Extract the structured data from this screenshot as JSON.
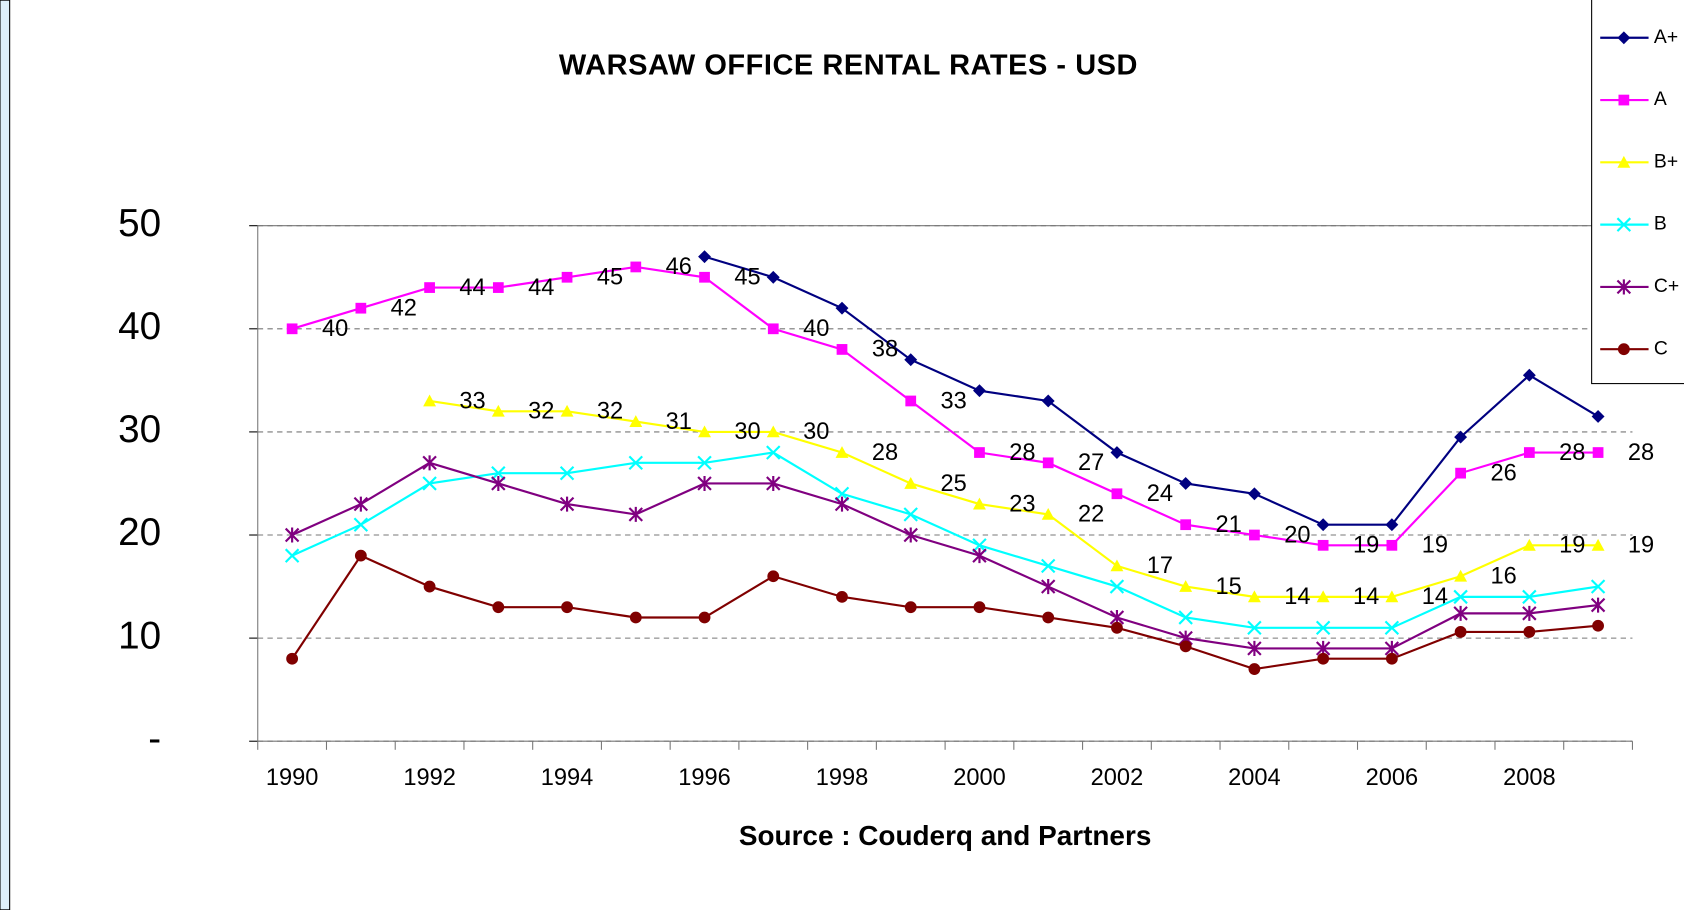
{
  "chart_data": {
    "type": "line",
    "title": "WARSAW OFFICE RENTAL RATES - USD",
    "x_label": "Source : Couderq and Partners",
    "categories": [
      1990,
      null,
      1992,
      null,
      1994,
      null,
      1996,
      null,
      1998,
      null,
      2000,
      null,
      2002,
      null,
      2004,
      null,
      2006,
      null,
      2008,
      null
    ],
    "ylim": [
      0,
      50
    ],
    "yticks": [
      {
        "value": 0,
        "label": "-"
      },
      10,
      20,
      30,
      40,
      50
    ],
    "grid": true,
    "legend": "top-right",
    "series": [
      {
        "name": "A+",
        "color": "#000080",
        "marker": "diamond",
        "data_labels": false,
        "values": [
          null,
          null,
          null,
          null,
          null,
          null,
          47,
          45,
          42,
          37,
          34,
          33,
          28,
          25,
          24,
          21,
          21,
          29.5,
          35.5,
          31.5
        ]
      },
      {
        "name": "A",
        "color": "#ff00ff",
        "marker": "square",
        "data_labels": true,
        "values": [
          40,
          42,
          44,
          44,
          45,
          46,
          45,
          40,
          38,
          33,
          28,
          27,
          24,
          21,
          20,
          19,
          19,
          26,
          28,
          28
        ]
      },
      {
        "name": "B+",
        "color": "#ffff00",
        "marker": "triangle",
        "data_labels": true,
        "values": [
          null,
          null,
          33,
          32,
          32,
          31,
          30,
          30,
          28,
          25,
          23,
          22,
          17,
          15,
          14,
          14,
          14,
          16,
          19,
          19
        ]
      },
      {
        "name": "B",
        "color": "#00ffff",
        "marker": "x",
        "data_labels": false,
        "values": [
          18,
          21,
          25,
          26,
          26,
          27,
          27,
          28,
          24,
          22,
          19,
          17,
          15,
          12,
          11,
          11,
          11,
          14,
          14,
          15
        ]
      },
      {
        "name": "C+",
        "color": "#800080",
        "marker": "star",
        "data_labels": false,
        "values": [
          20,
          23,
          27,
          25,
          23,
          22,
          25,
          25,
          23,
          20,
          18,
          15,
          12,
          10,
          9,
          9,
          9,
          12.4,
          12.4,
          13.2
        ]
      },
      {
        "name": "C",
        "color": "#800000",
        "marker": "circle",
        "data_labels": false,
        "values": [
          8,
          18,
          15,
          13,
          13,
          12,
          12,
          16,
          14,
          13,
          13,
          12,
          11,
          9.2,
          7,
          8,
          8,
          10.6,
          10.6,
          11.2
        ]
      }
    ]
  }
}
